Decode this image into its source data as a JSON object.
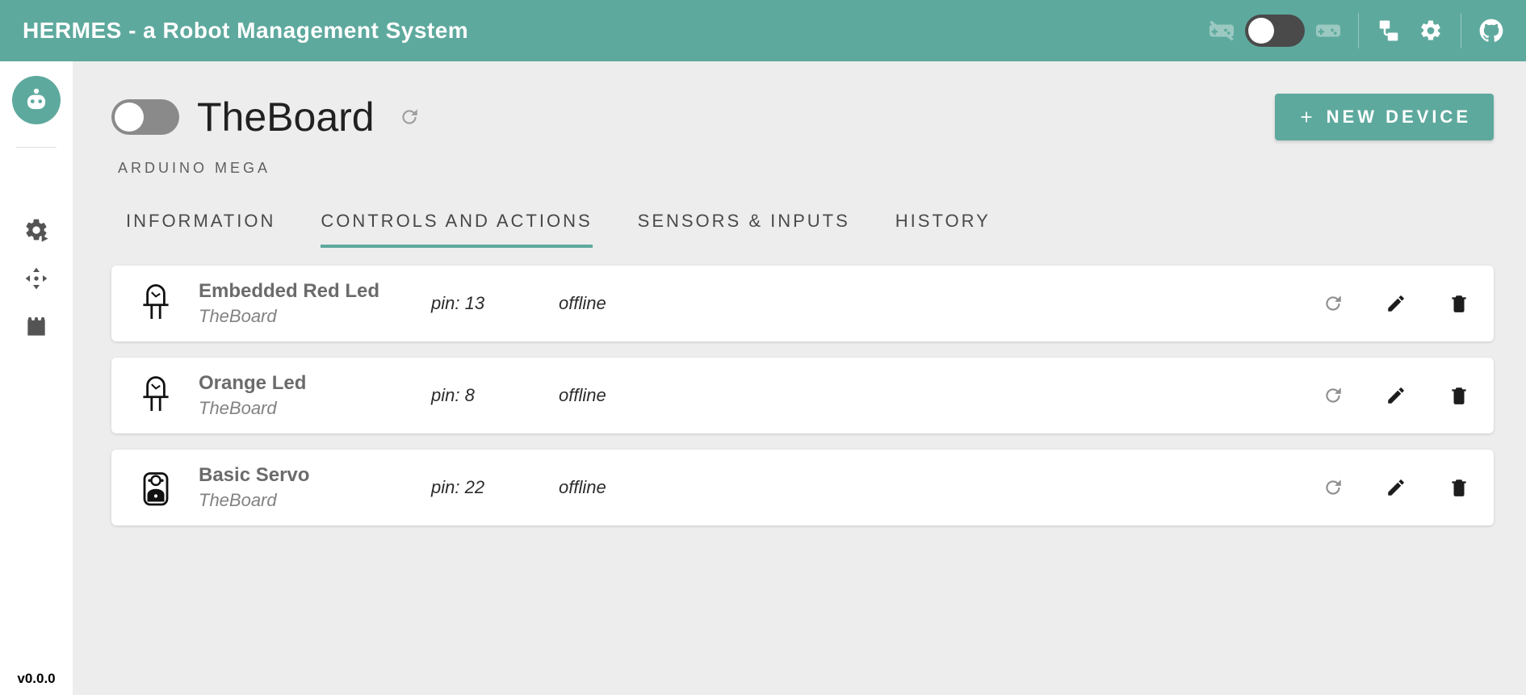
{
  "colors": {
    "accent": "#5ea99e",
    "header_bg": "#5ea99e",
    "page_bg": "#ededed",
    "card_bg": "#ffffff",
    "text_muted": "#6b6b6b",
    "toggle_off": "#8a8a8a",
    "header_toggle": "#4a4a4a"
  },
  "header": {
    "title": "HERMES - a Robot Management System",
    "gamepad_toggle_on": false
  },
  "sidebar": {
    "version": "v0.0.0"
  },
  "board": {
    "title": "TheBoard",
    "type": "ARDUINO MEGA",
    "power_on": false,
    "new_device_label": "NEW DEVICE"
  },
  "tabs": [
    {
      "label": "INFORMATION",
      "active": false
    },
    {
      "label": "CONTROLS AND ACTIONS",
      "active": true
    },
    {
      "label": "SENSORS & INPUTS",
      "active": false
    },
    {
      "label": "HISTORY",
      "active": false
    }
  ],
  "pin_prefix": "pin: ",
  "devices": [
    {
      "icon": "led",
      "name": "Embedded Red Led",
      "board": "TheBoard",
      "pin": "13",
      "status": "offline"
    },
    {
      "icon": "led",
      "name": "Orange Led",
      "board": "TheBoard",
      "pin": "8",
      "status": "offline"
    },
    {
      "icon": "servo",
      "name": "Basic Servo",
      "board": "TheBoard",
      "pin": "22",
      "status": "offline"
    }
  ]
}
